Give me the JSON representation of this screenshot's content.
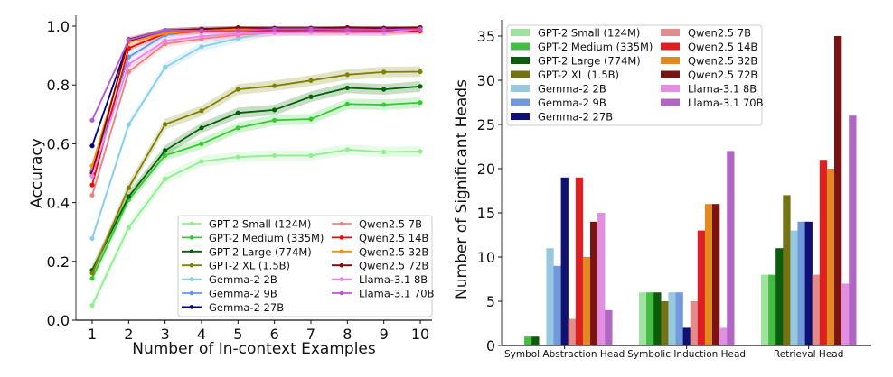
{
  "chart_data": [
    {
      "type": "line",
      "title": "",
      "xlabel": "Number of In-context Examples",
      "ylabel": "Accuracy",
      "x": [
        1,
        2,
        3,
        4,
        5,
        6,
        7,
        8,
        9,
        10
      ],
      "xticks": [
        "1",
        "2",
        "3",
        "4",
        "5",
        "6",
        "7",
        "8",
        "9",
        "10"
      ],
      "yticks": [
        "0.0",
        "0.2",
        "0.4",
        "0.6",
        "0.8",
        "1.0"
      ],
      "ytick_values": [
        0,
        0.2,
        0.4,
        0.6,
        0.8,
        1.0
      ],
      "xlim": [
        0.55,
        10.3
      ],
      "ylim": [
        0,
        1.0
      ],
      "grid": false,
      "legend_placement": "bottom-right",
      "series": [
        {
          "name": "GPT-2 Small (124M)",
          "color": "#90ee90",
          "values": [
            0.05,
            0.315,
            0.48,
            0.54,
            0.555,
            0.56,
            0.56,
            0.58,
            0.572,
            0.574
          ],
          "band": 0.018
        },
        {
          "name": "GPT-2 Medium (335M)",
          "color": "#32cd32",
          "values": [
            0.142,
            0.41,
            0.56,
            0.6,
            0.654,
            0.68,
            0.684,
            0.735,
            0.733,
            0.74
          ],
          "band": 0.018
        },
        {
          "name": "GPT-2 Large (774M)",
          "color": "#006400",
          "values": [
            0.17,
            0.42,
            0.577,
            0.654,
            0.705,
            0.715,
            0.76,
            0.79,
            0.785,
            0.795
          ],
          "band": 0.018
        },
        {
          "name": "GPT-2 XL (1.5B)",
          "color": "#808000",
          "values": [
            0.16,
            0.45,
            0.666,
            0.712,
            0.785,
            0.797,
            0.815,
            0.835,
            0.844,
            0.845
          ],
          "band": 0.018
        },
        {
          "name": "Gemma-2 2B",
          "color": "#87ceeb",
          "values": [
            0.278,
            0.665,
            0.86,
            0.93,
            0.958,
            0.985,
            0.98,
            0.985,
            0.985,
            0.99
          ],
          "band": 0.015
        },
        {
          "name": "Gemma-2 9B",
          "color": "#6495ed",
          "values": [
            0.51,
            0.895,
            0.97,
            0.985,
            0.99,
            0.99,
            0.99,
            0.99,
            0.99,
            0.99
          ],
          "band": 0.01
        },
        {
          "name": "Gemma-2 27B",
          "color": "#000080",
          "values": [
            0.593,
            0.95,
            0.985,
            0.99,
            0.993,
            0.993,
            0.993,
            0.995,
            0.993,
            0.995
          ],
          "band": 0.008
        },
        {
          "name": "Qwen2.5 7B",
          "color": "#f08080",
          "values": [
            0.425,
            0.845,
            0.94,
            0.957,
            0.97,
            0.978,
            0.98,
            0.978,
            0.978,
            0.985
          ],
          "band": 0.012
        },
        {
          "name": "Qwen2.5 14B",
          "color": "#ff0000",
          "values": [
            0.46,
            0.925,
            0.975,
            0.983,
            0.985,
            0.985,
            0.985,
            0.985,
            0.985,
            0.983
          ],
          "band": 0.01
        },
        {
          "name": "Qwen2.5 32B",
          "color": "#ff8c00",
          "values": [
            0.525,
            0.945,
            0.975,
            0.985,
            0.99,
            0.99,
            0.99,
            0.992,
            0.99,
            0.99
          ],
          "band": 0.008
        },
        {
          "name": "Qwen2.5 72B",
          "color": "#8b0000",
          "values": [
            0.5,
            0.955,
            0.985,
            0.99,
            0.995,
            0.993,
            0.993,
            0.995,
            0.993,
            0.995
          ],
          "band": 0.008
        },
        {
          "name": "Llama-3.1 8B",
          "color": "#ee82ee",
          "values": [
            0.49,
            0.87,
            0.95,
            0.965,
            0.975,
            0.978,
            0.98,
            0.98,
            0.978,
            0.99
          ],
          "band": 0.012
        },
        {
          "name": "Llama-3.1 70B",
          "color": "#ba55d3",
          "values": [
            0.68,
            0.953,
            0.985,
            0.985,
            0.985,
            0.99,
            0.99,
            0.988,
            0.988,
            0.99
          ],
          "band": 0.008
        }
      ]
    },
    {
      "type": "bar",
      "title": "",
      "xlabel": "",
      "ylabel": "Number of Significant Heads",
      "categories": [
        "Symbol Abstraction Head",
        "Symbolic Induction Head",
        "Retrieval Head"
      ],
      "yticks": [
        "0",
        "5",
        "10",
        "15",
        "20",
        "25",
        "30",
        "35"
      ],
      "ytick_values": [
        0,
        5,
        10,
        15,
        20,
        25,
        30,
        35
      ],
      "ylim": [
        0,
        36.7
      ],
      "grid": false,
      "legend_placement": "top-left",
      "series": [
        {
          "name": "GPT-2 Small (124M)",
          "color": "#9fe39f",
          "values": [
            0,
            6,
            8
          ]
        },
        {
          "name": "GPT-2 Medium (335M)",
          "color": "#45bd45",
          "values": [
            1,
            6,
            8
          ]
        },
        {
          "name": "GPT-2 Large (774M)",
          "color": "#0d5c0d",
          "values": [
            1,
            6,
            11
          ]
        },
        {
          "name": "GPT-2 XL (1.5B)",
          "color": "#737314",
          "values": [
            0,
            5,
            17
          ]
        },
        {
          "name": "Gemma-2 2B",
          "color": "#96c9df",
          "values": [
            11,
            6,
            13
          ]
        },
        {
          "name": "Gemma-2 9B",
          "color": "#7199dc",
          "values": [
            9,
            6,
            14
          ]
        },
        {
          "name": "Gemma-2 27B",
          "color": "#111173",
          "values": [
            19,
            2,
            14
          ]
        },
        {
          "name": "Qwen2.5 7B",
          "color": "#e38c8c",
          "values": [
            3,
            5,
            8
          ]
        },
        {
          "name": "Qwen2.5 14B",
          "color": "#df2020",
          "values": [
            19,
            13,
            21
          ]
        },
        {
          "name": "Qwen2.5 32B",
          "color": "#e28a20",
          "values": [
            10,
            16,
            20
          ]
        },
        {
          "name": "Qwen2.5 72B",
          "color": "#7a1313",
          "values": [
            14,
            16,
            35
          ]
        },
        {
          "name": "Llama-3.1 8B",
          "color": "#e28ee2",
          "values": [
            15,
            2,
            7
          ]
        },
        {
          "name": "Llama-3.1 70B",
          "color": "#b066c3",
          "values": [
            4,
            22,
            26
          ]
        }
      ]
    }
  ]
}
